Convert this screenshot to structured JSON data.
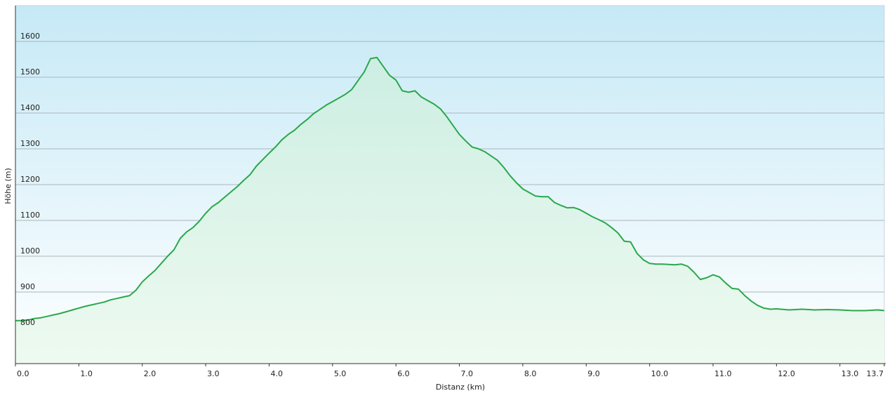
{
  "chart_data": {
    "type": "area",
    "title": "",
    "xlabel": "Distanz  (km)",
    "ylabel": "Höhe (m)",
    "xlim": [
      0,
      13.7
    ],
    "ylim": [
      700,
      1700
    ],
    "grid": true,
    "x_ticks": [
      {
        "value": 0,
        "label": "0.0"
      },
      {
        "value": 1,
        "label": "1.0"
      },
      {
        "value": 2,
        "label": "2.0"
      },
      {
        "value": 3,
        "label": "3.0"
      },
      {
        "value": 4,
        "label": "4.0"
      },
      {
        "value": 5,
        "label": "5.0"
      },
      {
        "value": 6,
        "label": "6.0"
      },
      {
        "value": 7,
        "label": "7.0"
      },
      {
        "value": 8,
        "label": "8.0"
      },
      {
        "value": 9,
        "label": "9.0"
      },
      {
        "value": 10,
        "label": "10.0"
      },
      {
        "value": 11,
        "label": "11.0"
      },
      {
        "value": 12,
        "label": "12.0"
      },
      {
        "value": 13,
        "label": "13.0"
      },
      {
        "value": 13.7,
        "label": "13.7"
      }
    ],
    "y_ticks": [
      {
        "value": 800,
        "label": "800"
      },
      {
        "value": 900,
        "label": "900"
      },
      {
        "value": 1000,
        "label": "1000"
      },
      {
        "value": 1100,
        "label": "1100"
      },
      {
        "value": 1200,
        "label": "1200"
      },
      {
        "value": 1300,
        "label": "1300"
      },
      {
        "value": 1400,
        "label": "1400"
      },
      {
        "value": 1500,
        "label": "1500"
      },
      {
        "value": 1600,
        "label": "1600"
      }
    ],
    "colors": {
      "line": "#2aa84a",
      "fill_top": "#cdeee3",
      "fill_bottom": "#eefaf0",
      "bg_top": "#c6e9f6",
      "bg_bottom": "#ffffff",
      "grid": "#a9b7bd",
      "axis": "#333333"
    },
    "series": [
      {
        "values": [
          [
            0.0,
            820
          ],
          [
            0.1,
            820
          ],
          [
            0.2,
            822
          ],
          [
            0.3,
            826
          ],
          [
            0.4,
            828
          ],
          [
            0.5,
            832
          ],
          [
            0.6,
            836
          ],
          [
            0.7,
            840
          ],
          [
            0.8,
            845
          ],
          [
            0.9,
            850
          ],
          [
            1.0,
            855
          ],
          [
            1.1,
            860
          ],
          [
            1.2,
            864
          ],
          [
            1.3,
            868
          ],
          [
            1.4,
            872
          ],
          [
            1.5,
            878
          ],
          [
            1.6,
            882
          ],
          [
            1.7,
            886
          ],
          [
            1.8,
            890
          ],
          [
            1.9,
            905
          ],
          [
            2.0,
            928
          ],
          [
            2.1,
            945
          ],
          [
            2.2,
            960
          ],
          [
            2.3,
            980
          ],
          [
            2.4,
            1000
          ],
          [
            2.5,
            1018
          ],
          [
            2.6,
            1050
          ],
          [
            2.7,
            1068
          ],
          [
            2.8,
            1080
          ],
          [
            2.9,
            1098
          ],
          [
            3.0,
            1120
          ],
          [
            3.1,
            1138
          ],
          [
            3.2,
            1150
          ],
          [
            3.3,
            1165
          ],
          [
            3.4,
            1180
          ],
          [
            3.5,
            1195
          ],
          [
            3.6,
            1212
          ],
          [
            3.7,
            1228
          ],
          [
            3.8,
            1252
          ],
          [
            3.9,
            1270
          ],
          [
            4.0,
            1288
          ],
          [
            4.1,
            1305
          ],
          [
            4.2,
            1325
          ],
          [
            4.3,
            1340
          ],
          [
            4.4,
            1352
          ],
          [
            4.5,
            1368
          ],
          [
            4.6,
            1382
          ],
          [
            4.7,
            1398
          ],
          [
            4.8,
            1410
          ],
          [
            4.9,
            1422
          ],
          [
            5.0,
            1432
          ],
          [
            5.1,
            1442
          ],
          [
            5.2,
            1452
          ],
          [
            5.3,
            1465
          ],
          [
            5.4,
            1490
          ],
          [
            5.5,
            1515
          ],
          [
            5.6,
            1552
          ],
          [
            5.7,
            1555
          ],
          [
            5.8,
            1530
          ],
          [
            5.9,
            1505
          ],
          [
            6.0,
            1492
          ],
          [
            6.1,
            1462
          ],
          [
            6.2,
            1458
          ],
          [
            6.3,
            1462
          ],
          [
            6.4,
            1445
          ],
          [
            6.5,
            1435
          ],
          [
            6.6,
            1425
          ],
          [
            6.7,
            1412
          ],
          [
            6.8,
            1390
          ],
          [
            6.9,
            1365
          ],
          [
            7.0,
            1340
          ],
          [
            7.1,
            1322
          ],
          [
            7.2,
            1305
          ],
          [
            7.3,
            1300
          ],
          [
            7.4,
            1292
          ],
          [
            7.5,
            1280
          ],
          [
            7.6,
            1268
          ],
          [
            7.7,
            1248
          ],
          [
            7.8,
            1225
          ],
          [
            7.9,
            1205
          ],
          [
            8.0,
            1188
          ],
          [
            8.1,
            1178
          ],
          [
            8.2,
            1168
          ],
          [
            8.3,
            1166
          ],
          [
            8.4,
            1166
          ],
          [
            8.5,
            1150
          ],
          [
            8.6,
            1142
          ],
          [
            8.7,
            1135
          ],
          [
            8.8,
            1136
          ],
          [
            8.9,
            1130
          ],
          [
            9.0,
            1120
          ],
          [
            9.1,
            1110
          ],
          [
            9.2,
            1102
          ],
          [
            9.3,
            1093
          ],
          [
            9.4,
            1080
          ],
          [
            9.5,
            1065
          ],
          [
            9.6,
            1042
          ],
          [
            9.7,
            1040
          ],
          [
            9.8,
            1008
          ],
          [
            9.9,
            990
          ],
          [
            10.0,
            980
          ],
          [
            10.1,
            978
          ],
          [
            10.2,
            978
          ],
          [
            10.3,
            977
          ],
          [
            10.4,
            976
          ],
          [
            10.5,
            978
          ],
          [
            10.6,
            972
          ],
          [
            10.7,
            955
          ],
          [
            10.8,
            935
          ],
          [
            10.9,
            940
          ],
          [
            11.0,
            948
          ],
          [
            11.1,
            942
          ],
          [
            11.2,
            925
          ],
          [
            11.3,
            910
          ],
          [
            11.4,
            908
          ],
          [
            11.5,
            890
          ],
          [
            11.6,
            875
          ],
          [
            11.7,
            863
          ],
          [
            11.8,
            855
          ],
          [
            11.9,
            852
          ],
          [
            12.0,
            853
          ],
          [
            12.2,
            850
          ],
          [
            12.4,
            852
          ],
          [
            12.6,
            850
          ],
          [
            12.8,
            851
          ],
          [
            13.0,
            850
          ],
          [
            13.2,
            848
          ],
          [
            13.4,
            848
          ],
          [
            13.6,
            850
          ],
          [
            13.7,
            848
          ]
        ]
      }
    ]
  }
}
